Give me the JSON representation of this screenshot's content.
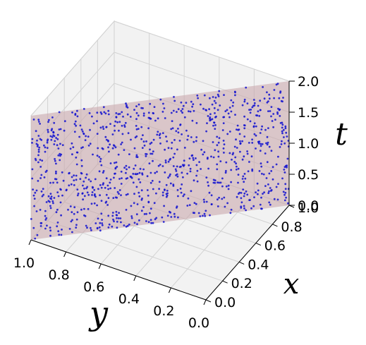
{
  "chart_data": {
    "type": "scatter3d",
    "title": "",
    "axes": {
      "x": {
        "label": "x",
        "range": [
          0.0,
          1.0
        ],
        "ticks": [
          "0.0",
          "0.2",
          "0.4",
          "0.6",
          "0.8",
          "1.0"
        ]
      },
      "y": {
        "label": "y",
        "range": [
          0.0,
          1.0
        ],
        "ticks": [
          "0.0",
          "0.2",
          "0.4",
          "0.6",
          "0.8",
          "1.0"
        ]
      },
      "t": {
        "label": "t",
        "range": [
          0.0,
          2.0
        ],
        "ticks": [
          "0.0",
          "0.5",
          "1.0",
          "1.5",
          "2.0"
        ]
      }
    },
    "grid": true,
    "surface": {
      "description": "plane x = 1 - y spanning t from 0 to 2",
      "color": "#c9a9ad",
      "opacity": 0.6
    },
    "points": {
      "count": 1000,
      "distribution": "uniform on the plane x = 1 - y, 0 ≤ y ≤ 1, 0 ≤ t ≤ 2",
      "color": "#1010d0",
      "marker_size": 2
    },
    "colors": {
      "pane": "#f2f2f2",
      "grid": "#d3d3d3",
      "axis": "#000000"
    }
  }
}
